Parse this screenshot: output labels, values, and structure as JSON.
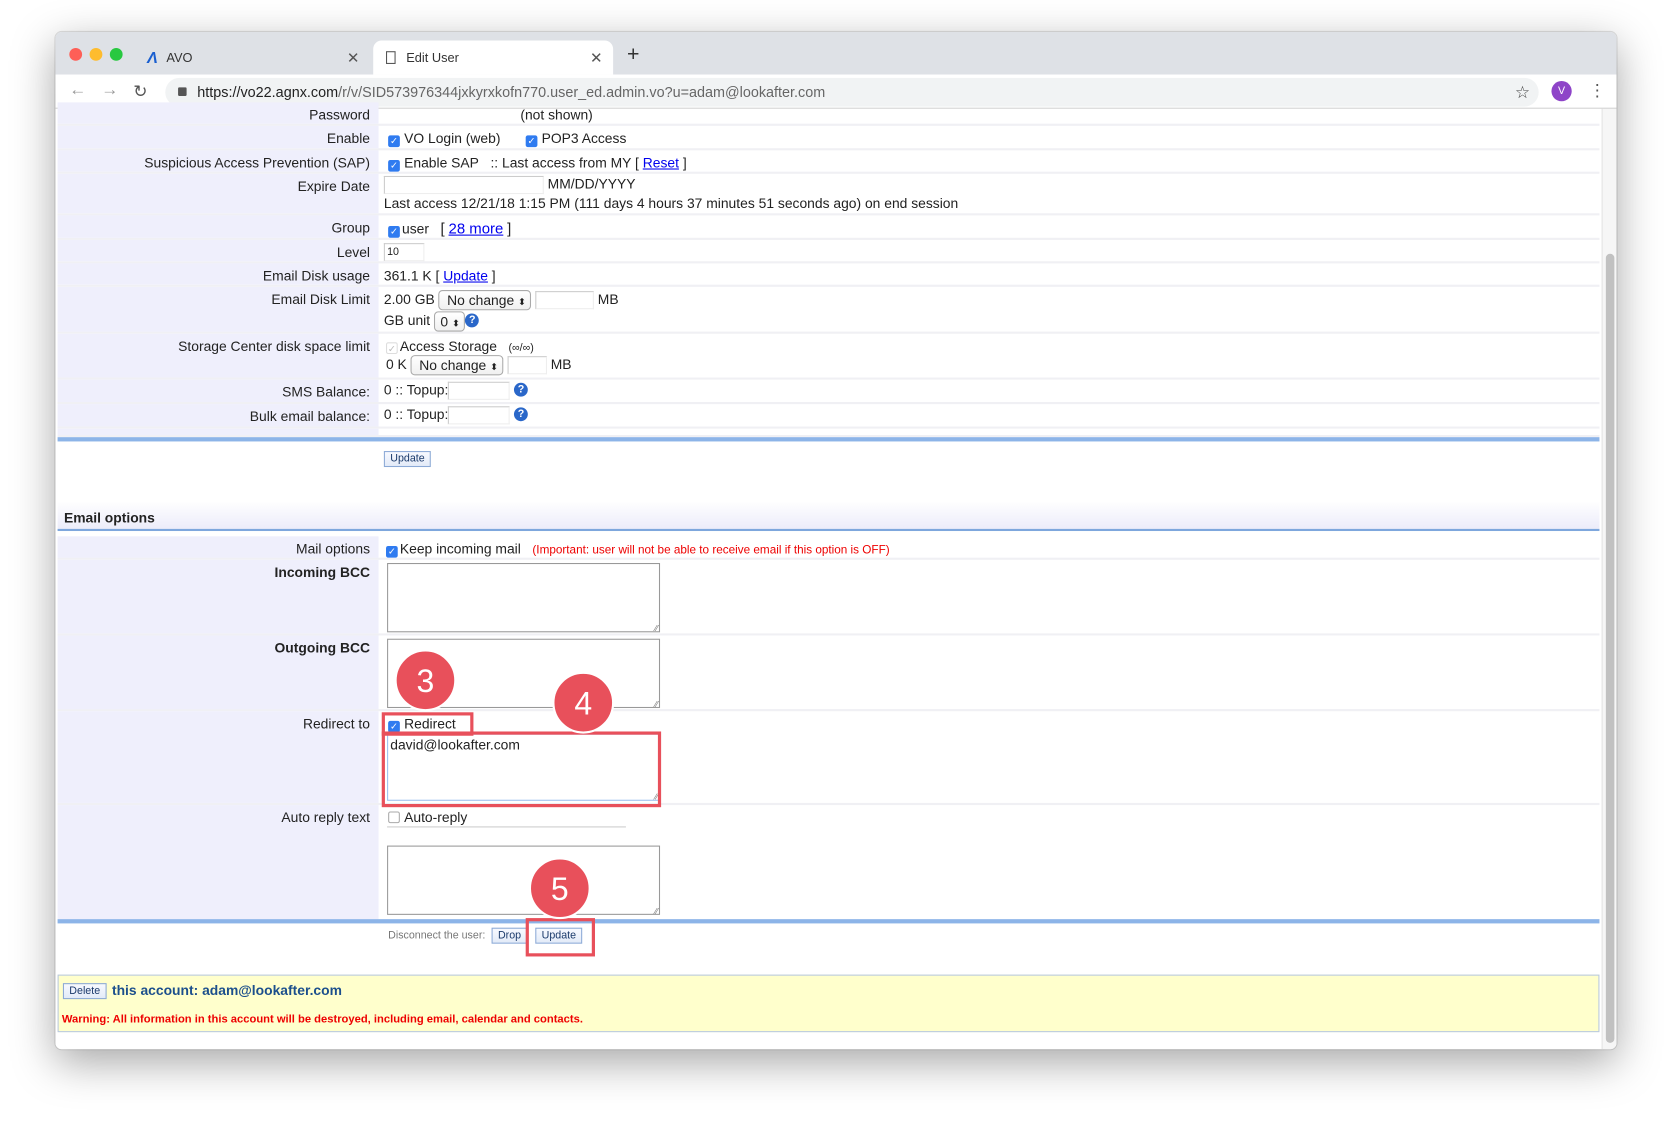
{
  "browser": {
    "tabs": [
      {
        "label": "AVO",
        "icon": "avo-logo-icon"
      },
      {
        "label": "Edit User",
        "icon": "page-icon"
      }
    ],
    "url_host": "https://vo22.agnx.com",
    "url_path": "/r/v/SID573976344jxkyrxkofn770.user_ed.admin.vo?u=adam@lookafter.com",
    "profile_initial": "V"
  },
  "account": {
    "password_label": "Password",
    "password_value": "(not shown)",
    "enable_label": "Enable",
    "enable_vo": "VO Login (web)",
    "enable_pop3": "POP3 Access",
    "sap_label": "Suspicious Access Prevention (SAP)",
    "sap_enable": "Enable SAP",
    "sap_last": ":: Last access from MY [",
    "sap_reset": "Reset",
    "sap_close": "]",
    "expire_label": "Expire Date",
    "expire_format": "MM/DD/YYYY",
    "last_access": "Last access 12/21/18 1:15 PM (111 days 4 hours 37 minutes 51 seconds ago) on end session",
    "group_label": "Group",
    "group_user": "user",
    "group_open": "[",
    "group_more": "28 more",
    "group_close": "]",
    "level_label": "Level",
    "level_value": "10",
    "disk_usage_label": "Email Disk usage",
    "disk_usage_value": "361.1 K [",
    "disk_usage_update": "Update",
    "disk_usage_close": "]",
    "disk_limit_label": "Email Disk Limit",
    "disk_limit_value": "2.00 GB",
    "disk_limit_select": "No change",
    "mb": "MB",
    "gb_unit": "GB unit",
    "gb_unit_value": "0",
    "storage_label": "Storage Center disk space limit",
    "storage_access": "Access Storage",
    "storage_quota": "(∞/∞)",
    "storage_value": "0 K",
    "storage_select": "No change",
    "sms_label": "SMS Balance:",
    "sms_value": "0 :: Topup:",
    "bulk_label": "Bulk email balance:",
    "bulk_value": "0 :: Topup:",
    "update_button": "Update"
  },
  "email_options": {
    "heading": "Email options",
    "mail_options_label": "Mail options",
    "keep_incoming": "Keep incoming mail",
    "important_note": "(Important: user will not be able to receive email if this option is OFF)",
    "incoming_bcc_label": "Incoming BCC",
    "incoming_bcc_value": "",
    "outgoing_bcc_label": "Outgoing BCC",
    "outgoing_bcc_value": "",
    "redirect_label": "Redirect to",
    "redirect_checkbox": "Redirect",
    "redirect_value": "david@lookafter.com",
    "auto_reply_label": "Auto reply text",
    "auto_reply_checkbox": "Auto-reply",
    "disconnect_label": "Disconnect the user:",
    "drop_button": "Drop",
    "update_button": "Update"
  },
  "danger": {
    "delete_button": "Delete",
    "account_text": "this account: adam@lookafter.com",
    "warning": "Warning: All information in this account will be destroyed, including email, calendar and contacts."
  },
  "annotations": [
    "3",
    "4",
    "5"
  ],
  "colors": {
    "accent": "#e8505b",
    "label_bg": "#efeffc",
    "divider": "#8cb4e8",
    "warning_bg": "#ffffcc",
    "warning_text": "#ee0000"
  }
}
